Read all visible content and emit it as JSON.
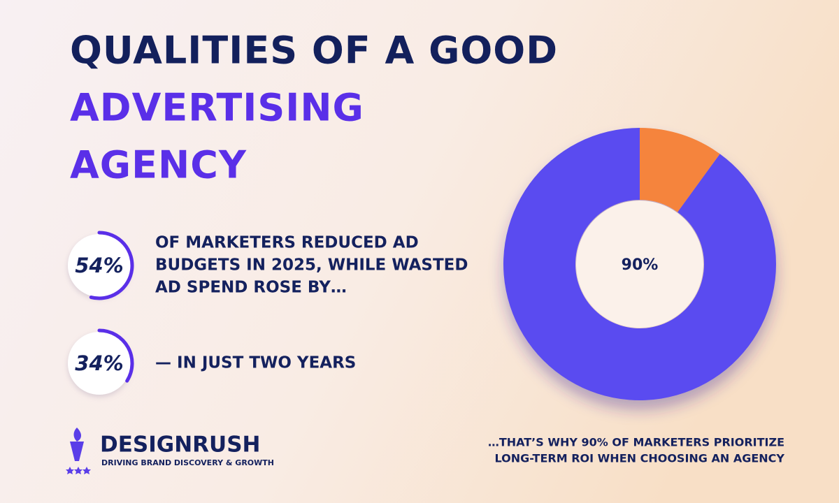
{
  "title": {
    "lines": [
      "QUALITIES OF A GOOD",
      "ADVERTISING",
      "AGENCY"
    ]
  },
  "stats": [
    {
      "value": 54,
      "label": "54%",
      "text": [
        "OF MARKETERS REDUCED AD",
        "BUDGETS IN 2025, WHILE WASTED",
        "AD SPEND ROSE BY…"
      ]
    },
    {
      "value": 34,
      "label": "34%",
      "text": [
        "— IN JUST TWO YEARS"
      ]
    }
  ],
  "brand": {
    "name": "DESIGNRUSH",
    "tagline": "DRIVING BRAND DISCOVERY & GROWTH"
  },
  "chart_data": {
    "type": "donut",
    "values": [
      90,
      10
    ],
    "value_labels": [
      "90%",
      null
    ],
    "colors": [
      "#5a4cf0",
      "#f5843c"
    ]
  },
  "caption": [
    "…THAT’S WHY 90% OF MARKETERS PRIORITIZE",
    "LONG-TERM ROI WHEN CHOOSING AN AGENCY"
  ]
}
